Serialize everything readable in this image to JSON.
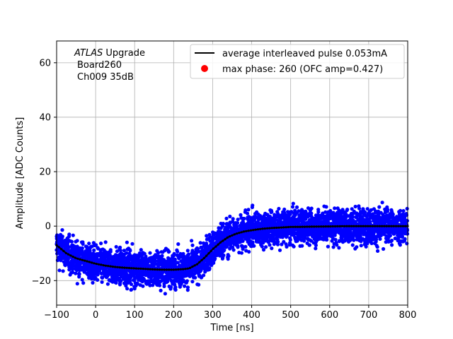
{
  "chart_data": {
    "type": "scatter",
    "title": "",
    "xlabel": "Time [ns]",
    "ylabel": "Amplitude [ADC Counts]",
    "xlim": [
      -100,
      800
    ],
    "ylim": [
      -29,
      68
    ],
    "xticks": [
      -100,
      0,
      100,
      200,
      300,
      400,
      500,
      600,
      700,
      800
    ],
    "yticks": [
      -20,
      0,
      20,
      40,
      60
    ],
    "grid": true,
    "legend_position": "top-right",
    "annotation": {
      "line1_italic": "ATLAS",
      "line1_rest": " Upgrade",
      "line2": "Board260",
      "line3": "Ch009 35dB"
    },
    "series": [
      {
        "name": "average interleaved pulse 0.053mA",
        "kind": "line",
        "color": "#000000",
        "x": [
          -100,
          -75,
          -50,
          -25,
          0,
          25,
          50,
          75,
          100,
          125,
          150,
          175,
          200,
          225,
          240,
          260,
          280,
          300,
          320,
          340,
          360,
          380,
          400,
          425,
          450,
          475,
          500,
          550,
          600,
          650,
          700,
          750,
          800
        ],
        "y": [
          -7,
          -10,
          -11.8,
          -12.8,
          -13.8,
          -14.5,
          -15,
          -15.3,
          -15.5,
          -15.7,
          -15.9,
          -16,
          -16,
          -15.8,
          -15.5,
          -14,
          -11.5,
          -8.5,
          -6,
          -4,
          -2.8,
          -2,
          -1.5,
          -1,
          -0.7,
          -0.5,
          -0.3,
          -0.2,
          -0.1,
          0,
          0,
          0,
          0
        ]
      },
      {
        "name": "max phase: 260 (OFC amp=0.427)",
        "kind": "marker",
        "color": "#ff0000",
        "x": [
          260
        ],
        "y": [
          0.427
        ]
      },
      {
        "name": "samples",
        "kind": "scatter-band",
        "color": "#0000ff",
        "spread": 5.5
      }
    ]
  }
}
